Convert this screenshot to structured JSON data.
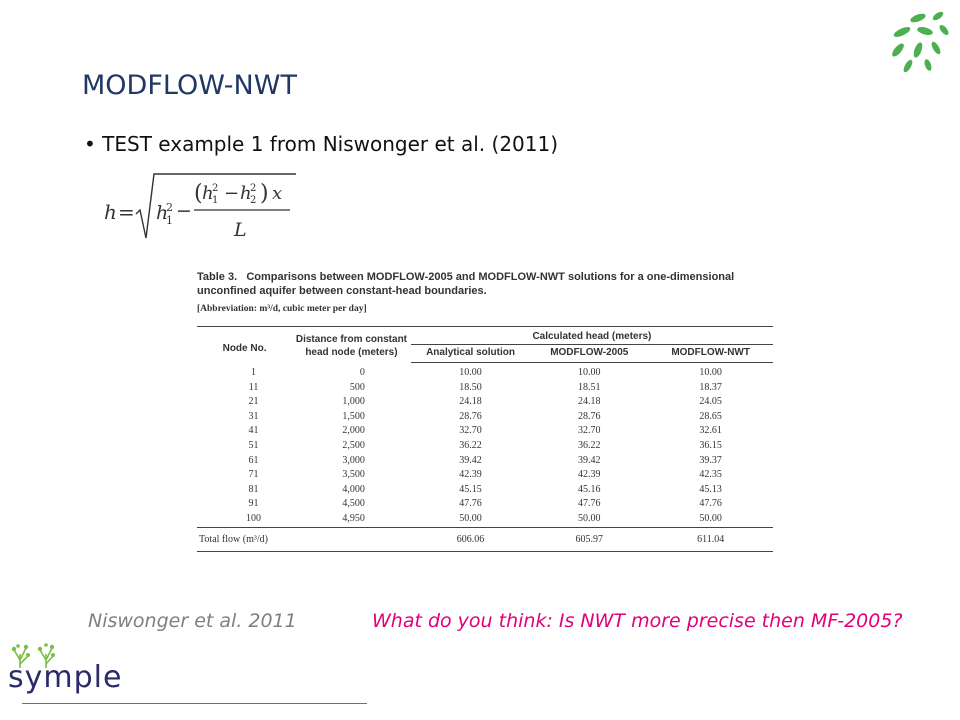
{
  "slide": {
    "title": "MODFLOW-NWT",
    "bullet": "• TEST example 1 from Niswonger et al. (2011)",
    "citation": "Niswonger et al. 2011",
    "question": "What do you think: Is NWT more precise then MF-2005?"
  },
  "formula": {
    "lhs": "h",
    "eq": "=",
    "h1sq": "h",
    "numerator": "(h² − h²) x",
    "denominator": "L"
  },
  "table": {
    "caption_label": "Table 3.",
    "caption_text": "Comparisons between MODFLOW-2005 and MODFLOW-NWT solutions for a one-dimensional unconfined aquifer between constant-head boundaries.",
    "abbreviation": "[Abbreviation: m³/d, cubic meter per day]",
    "headers": {
      "node": "Node No.",
      "distance": "Distance from constant head node (meters)",
      "calculated": "Calculated head (meters)",
      "analytical": "Analytical solution",
      "mf2005": "MODFLOW-2005",
      "nwt": "MODFLOW-NWT"
    },
    "rows": [
      [
        "1",
        "0",
        "10.00",
        "10.00",
        "10.00"
      ],
      [
        "11",
        "500",
        "18.50",
        "18.51",
        "18.37"
      ],
      [
        "21",
        "1,000",
        "24.18",
        "24.18",
        "24.05"
      ],
      [
        "31",
        "1,500",
        "28.76",
        "28.76",
        "28.65"
      ],
      [
        "41",
        "2,000",
        "32.70",
        "32.70",
        "32.61"
      ],
      [
        "51",
        "2,500",
        "36.22",
        "36.22",
        "36.15"
      ],
      [
        "61",
        "3,000",
        "39.42",
        "39.42",
        "39.37"
      ],
      [
        "71",
        "3,500",
        "42.39",
        "42.39",
        "42.35"
      ],
      [
        "81",
        "4,000",
        "45.15",
        "45.16",
        "45.13"
      ],
      [
        "91",
        "4,500",
        "47.76",
        "47.76",
        "47.76"
      ],
      [
        "100",
        "4,950",
        "50.00",
        "50.00",
        "50.00"
      ]
    ],
    "total": {
      "label": "Total flow (m³/d)",
      "analytical": "606.06",
      "mf2005": "605.97",
      "nwt": "611.04"
    }
  },
  "branding": {
    "name": "symple",
    "leaf_color": "#4caf50"
  }
}
